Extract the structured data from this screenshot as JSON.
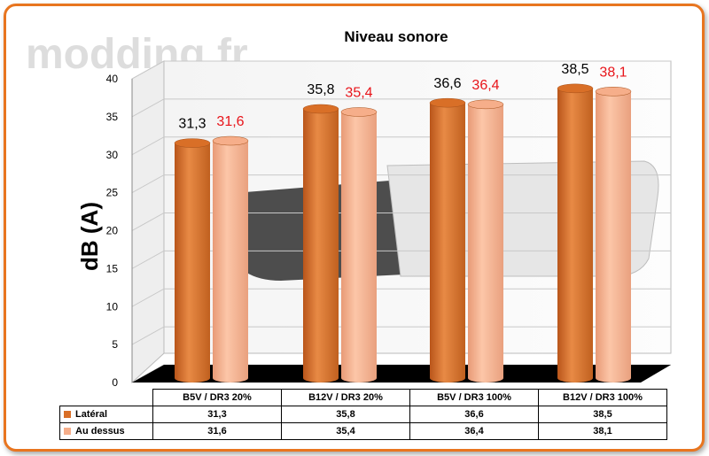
{
  "watermark": "modding.fr",
  "colors": {
    "lateral": "#d96f27",
    "dessus": "#f6ae8a",
    "lateral_label": "#000000",
    "dessus_label": "#e8141a",
    "frame": "#e8751f"
  },
  "chart_data": {
    "type": "bar",
    "title": "Niveau sonore",
    "ylabel": "dB (A)",
    "xlabel": "",
    "ylim": [
      0,
      40
    ],
    "yticks": [
      0,
      5,
      10,
      15,
      20,
      25,
      30,
      35,
      40
    ],
    "categories": [
      "B5V / DR3 20%",
      "B12V / DR3 20%",
      "B5V / DR3 100%",
      "B12V / DR3 100%"
    ],
    "series": [
      {
        "name": "Latéral",
        "values": [
          31.3,
          35.8,
          36.6,
          38.5
        ],
        "labels": [
          "31,3",
          "35,8",
          "36,6",
          "38,5"
        ]
      },
      {
        "name": "Au dessus",
        "values": [
          31.6,
          35.4,
          36.4,
          38.1
        ],
        "labels": [
          "31,6",
          "35,4",
          "36,4",
          "38,1"
        ]
      }
    ],
    "grid": true,
    "legend": "data-table"
  }
}
